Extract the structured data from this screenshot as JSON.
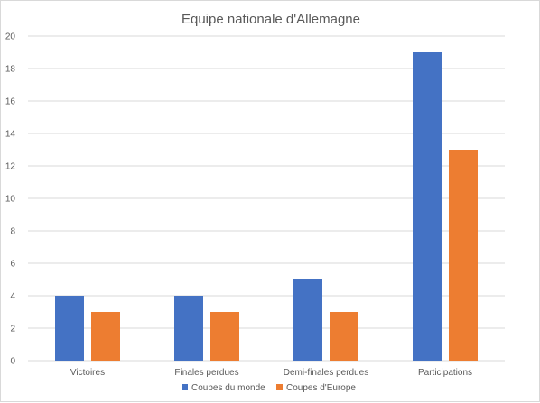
{
  "chart_data": {
    "type": "bar",
    "title": "Equipe nationale d'Allemagne",
    "xlabel": "",
    "ylabel": "",
    "categories": [
      "Victoires",
      "Finales perdues",
      "Demi-finales perdues",
      "Participations"
    ],
    "series": [
      {
        "name": "Coupes du monde",
        "values": [
          4,
          4,
          5,
          19
        ],
        "color": "#4472c4"
      },
      {
        "name": "Coupes d'Europe",
        "values": [
          3,
          3,
          3,
          13
        ],
        "color": "#ed7d31"
      }
    ],
    "ylim": [
      0,
      20
    ],
    "yticks": [
      0,
      2,
      4,
      6,
      8,
      10,
      12,
      14,
      16,
      18,
      20
    ],
    "grid": true,
    "gridColor": "#d9d9d9",
    "legend": "bottom"
  }
}
